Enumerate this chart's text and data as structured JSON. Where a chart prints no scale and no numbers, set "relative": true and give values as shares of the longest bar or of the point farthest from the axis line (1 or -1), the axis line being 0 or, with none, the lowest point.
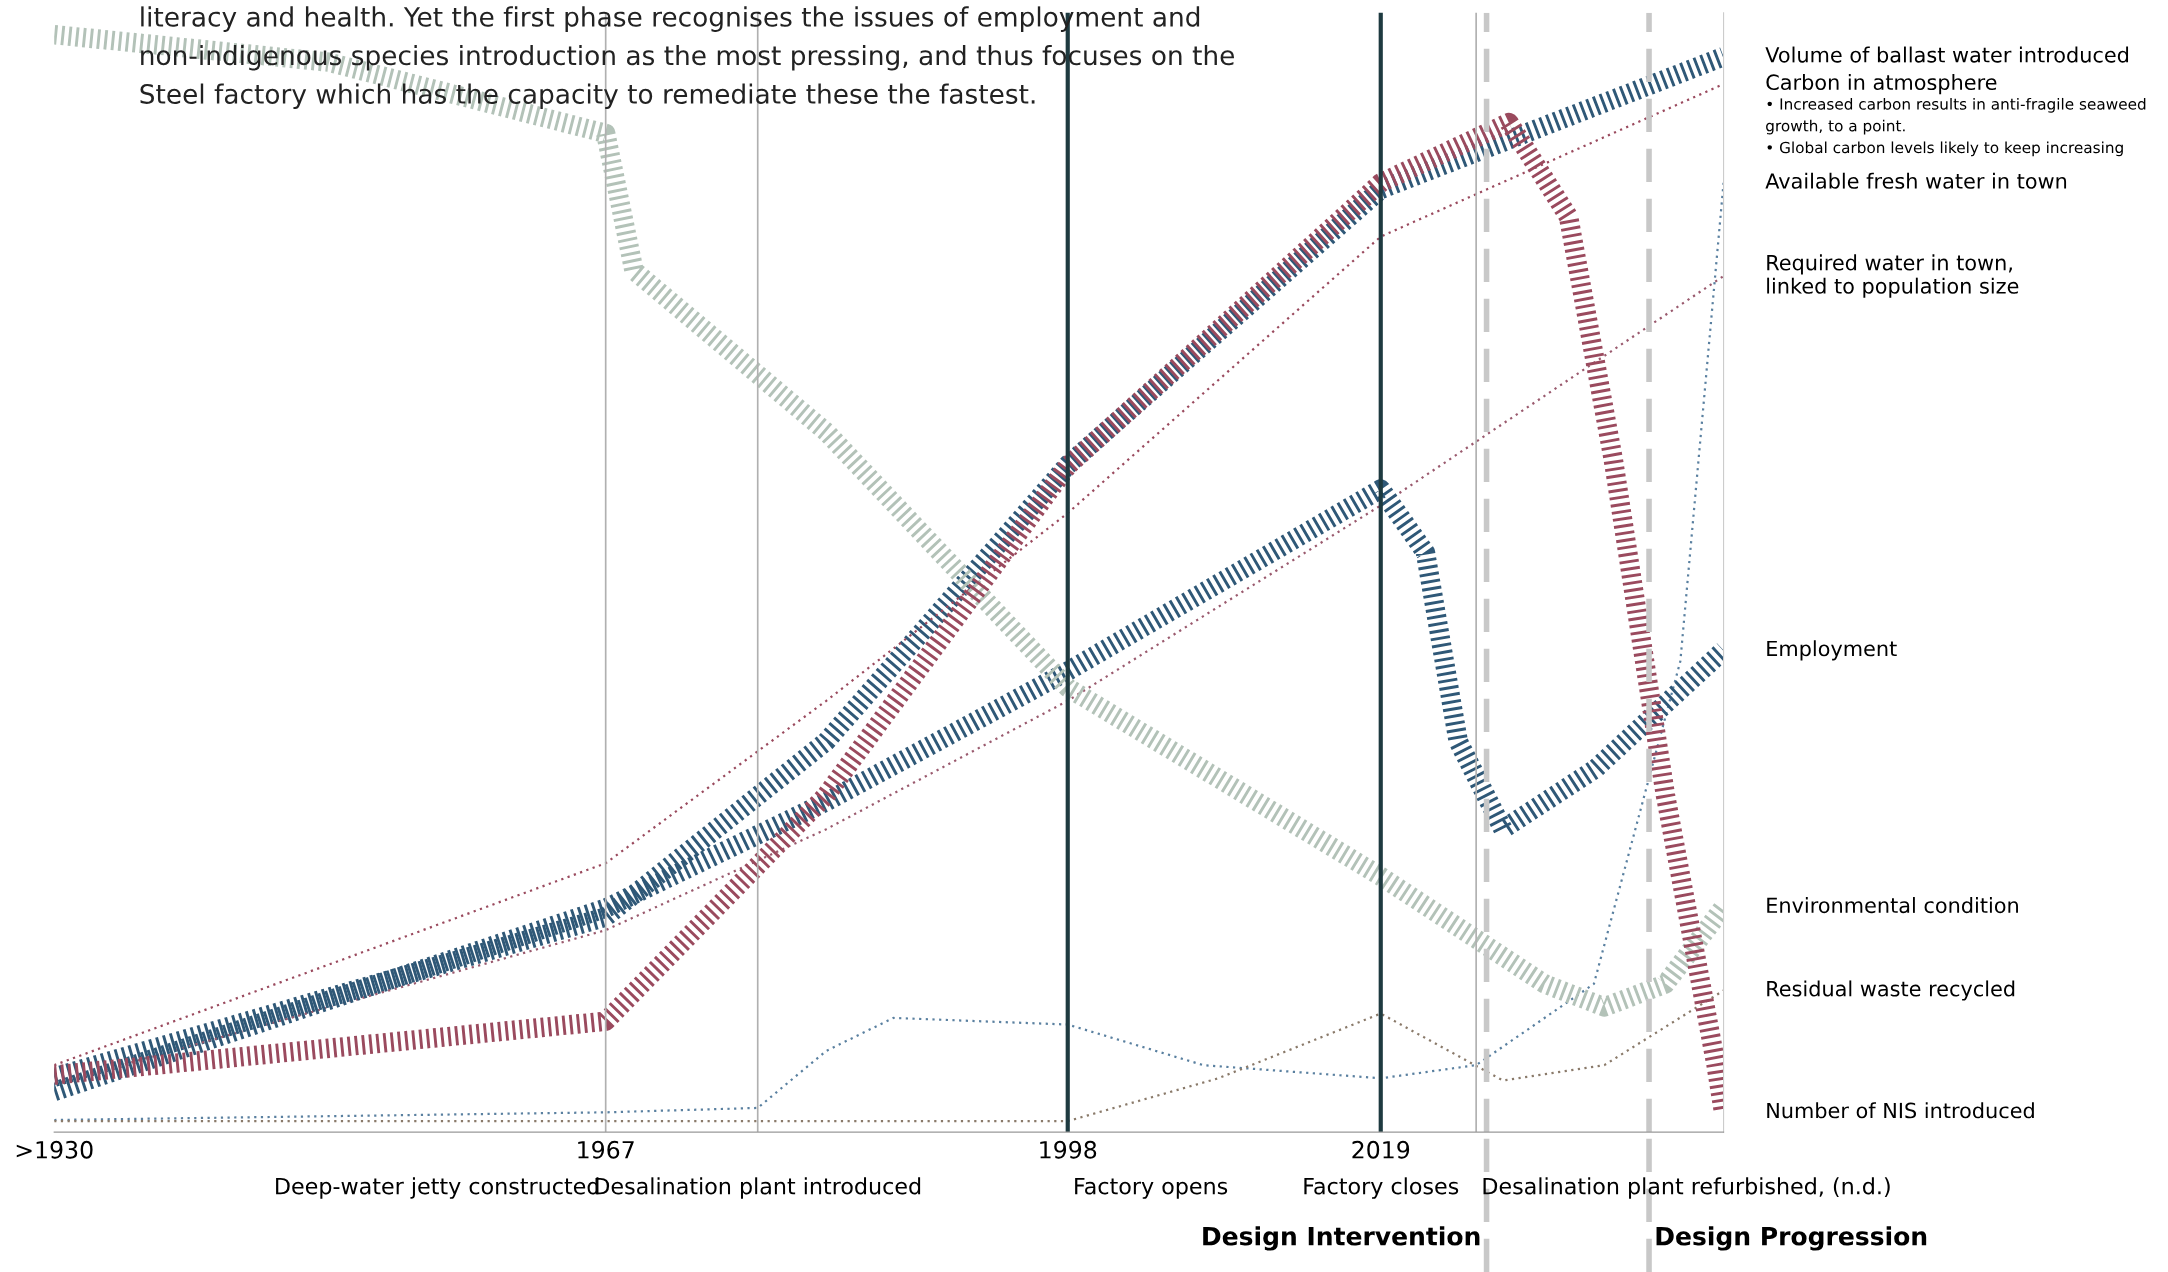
{
  "chart_data": {
    "type": "line",
    "relative": true,
    "tick_labels": "x",
    "grid": false,
    "marker": "none",
    "xlim": [
      1930,
      2042
    ],
    "xticks": [
      {
        "value": 1930,
        "label": ">1930"
      },
      1967,
      1998,
      2019
    ],
    "series": [
      {
        "name": "Volume of ballast water introduced",
        "color": "#2f5877",
        "line_style": "dashed",
        "x": [
          1930,
          1967,
          1981.8,
          1998,
          2019,
          2042
        ],
        "values": [
          0.05,
          0.196,
          0.356,
          0.608,
          0.859,
          0.98
        ]
      },
      {
        "name": "Carbon in atmosphere",
        "color": "#9a4a5e",
        "line_style": "dotted",
        "x": [
          1930,
          1967,
          1981.8,
          1998,
          2019,
          2042
        ],
        "values": [
          0.061,
          0.245,
          0.393,
          0.564,
          0.816,
          0.955
        ]
      },
      {
        "name": "Available fresh water in town",
        "color": "#5a80a0",
        "line_style": "dotted",
        "x": [
          1930,
          1967,
          1977.2,
          1981.8,
          1986.3,
          1998,
          2007.1,
          2019,
          2025.4,
          2033.3,
          2039.1,
          2042
        ],
        "values": [
          0.011,
          0.018,
          0.022,
          0.074,
          0.104,
          0.098,
          0.061,
          0.049,
          0.061,
          0.135,
          0.429,
          0.865
        ]
      },
      {
        "name": "Required water in town,\nlinked to population size",
        "color": "#9a5a6e",
        "line_style": "dotted",
        "x": [
          1930,
          1967,
          1981.8,
          1998,
          2019,
          2042
        ],
        "values": [
          0.044,
          0.184,
          0.276,
          0.393,
          0.571,
          0.78
        ]
      },
      {
        "name": "Employment",
        "color": "#2f5877",
        "line_style": "dashed",
        "x": [
          1930,
          1967,
          1981.8,
          1998,
          2019,
          2022,
          2024.2,
          2027.2,
          2033.4,
          2042
        ],
        "values": [
          0.037,
          0.204,
          0.301,
          0.42,
          0.586,
          0.528,
          0.356,
          0.276,
          0.331,
          0.439
        ]
      },
      {
        "name": "Environmental condition",
        "color": "#b3c2b8",
        "line_style": "dashed",
        "x": [
          1930,
          1948.4,
          1967,
          1968.9,
          1981.8,
          1998,
          2019,
          2030,
          2034,
          2038.1,
          2042
        ],
        "values": [
          1.0,
          0.975,
          0.91,
          0.785,
          0.638,
          0.405,
          0.233,
          0.135,
          0.114,
          0.135,
          0.205
        ]
      },
      {
        "name": "Residual waste recycled",
        "color": "#8a7a6a",
        "line_style": "dotted",
        "x": [
          1930,
          1967,
          1998,
          2008.1,
          2019,
          2027.2,
          2034,
          2042
        ],
        "values": [
          0.01,
          0.01,
          0.01,
          0.049,
          0.108,
          0.047,
          0.061,
          0.129
        ]
      },
      {
        "name": "Number of NIS introduced",
        "color": "#9a4a5e",
        "line_style": "dashed",
        "x": [
          1930,
          1967,
          1981.8,
          1998,
          2019,
          2027.6,
          2031.6,
          2034.6,
          2038.1,
          2041.5,
          2042
        ],
        "values": [
          0.052,
          0.101,
          0.307,
          0.607,
          0.865,
          0.92,
          0.834,
          0.613,
          0.307,
          0.061,
          0.018
        ]
      }
    ],
    "ref_lines": [
      {
        "axis": "x",
        "value": 1967,
        "label": "Deep-water jetty constructed",
        "color": "#b0b0b0",
        "line_style": "solid"
      },
      {
        "axis": "x",
        "value": 1977.2,
        "label": "Desalination plant introduced",
        "color": "#b0b0b0",
        "line_style": "solid"
      },
      {
        "axis": "x",
        "value": 1998,
        "label": "Factory opens",
        "color": "#1e3a40",
        "line_style": "solid"
      },
      {
        "axis": "x",
        "value": 2019,
        "label": "Factory closes",
        "color": "#1e3a40",
        "line_style": "solid"
      },
      {
        "axis": "x",
        "value": 2025.4,
        "label": "Desalination plant refurbished, (n.d.)",
        "color": "#b0b0b0",
        "line_style": "solid"
      },
      {
        "axis": "x",
        "value": 2026.1,
        "label": "Design Intervention",
        "color": "#c8c8c8",
        "line_style": "dotted"
      },
      {
        "axis": "x",
        "value": 2037,
        "label": "Design Progression",
        "color": "#c8c8c8",
        "line_style": "dotted"
      }
    ],
    "annotations": [
      "literacy and health. Yet the first phase recognises the issues of employment and\nnon-indigenous species introduction as the most pressing, and thus focuses on the\nSteel factory which has the capacity to remediate these the fastest.",
      "• Increased carbon results in anti-fragile seaweed\ngrowth, to a point.\n• Global carbon levels likely to keep increasing"
    ]
  }
}
